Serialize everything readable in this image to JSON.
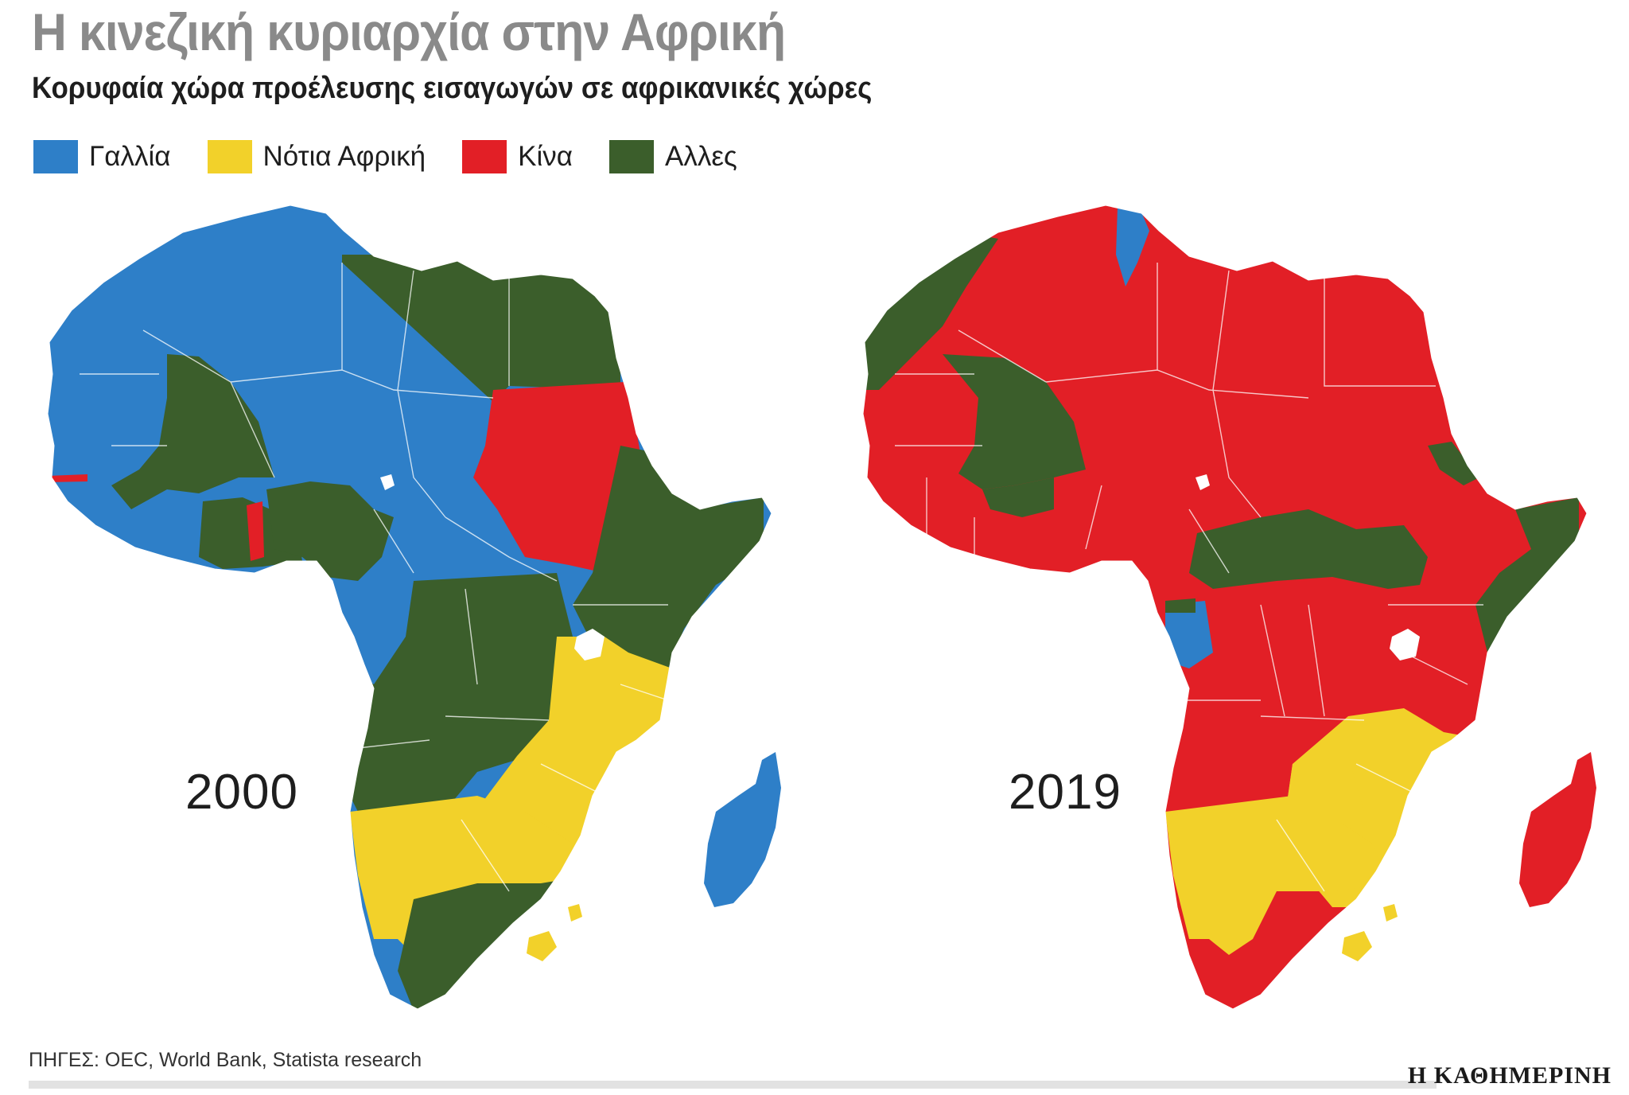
{
  "title": "Η κινεζική κυριαρχία στην Αφρική",
  "subtitle": "Κορυφαία χώρα προέλευσης εισαγωγών σε αφρικανικές χώρες",
  "legend": [
    {
      "label": "Γαλλία",
      "color": "#2e7fc8"
    },
    {
      "label": "Νότια Αφρική",
      "color": "#f2d12a"
    },
    {
      "label": "Κίνα",
      "color": "#e21f26"
    },
    {
      "label": "Αλλες",
      "color": "#3b5e2b"
    }
  ],
  "maps": [
    {
      "year": "2000",
      "regions": {
        "northwest": "France",
        "mali": "Other",
        "nile_north": "Other",
        "sudan": "China",
        "west_coast": "France",
        "coastal": "Other",
        "benin": "China",
        "gambia": "China",
        "central": "France",
        "congo_angola": "Other",
        "east_horn": "Other",
        "southeast": "South Africa",
        "southwest": "South Africa",
        "south": "Other",
        "lesotho": "South Africa",
        "madagascar": "France"
      }
    },
    {
      "year": "2019",
      "regions": {
        "morocco_coast": "Other",
        "north": "China",
        "tunisia": "France",
        "mali": "Other",
        "burkina": "Other",
        "west_coast": "China",
        "car_ssudan": "Other",
        "eritrea": "Other",
        "somalia": "Other",
        "gabon": "France",
        "equator": "Other",
        "congo_east": "China",
        "southeast": "South Africa",
        "southwest": "South Africa",
        "south": "China",
        "lesotho": "South Africa",
        "madagascar": "China"
      }
    }
  ],
  "source": "ΠΗΓΕΣ: OEC, World Bank, Statista research",
  "brand": "Η ΚΑΘΗΜΕΡΙΝΗ"
}
